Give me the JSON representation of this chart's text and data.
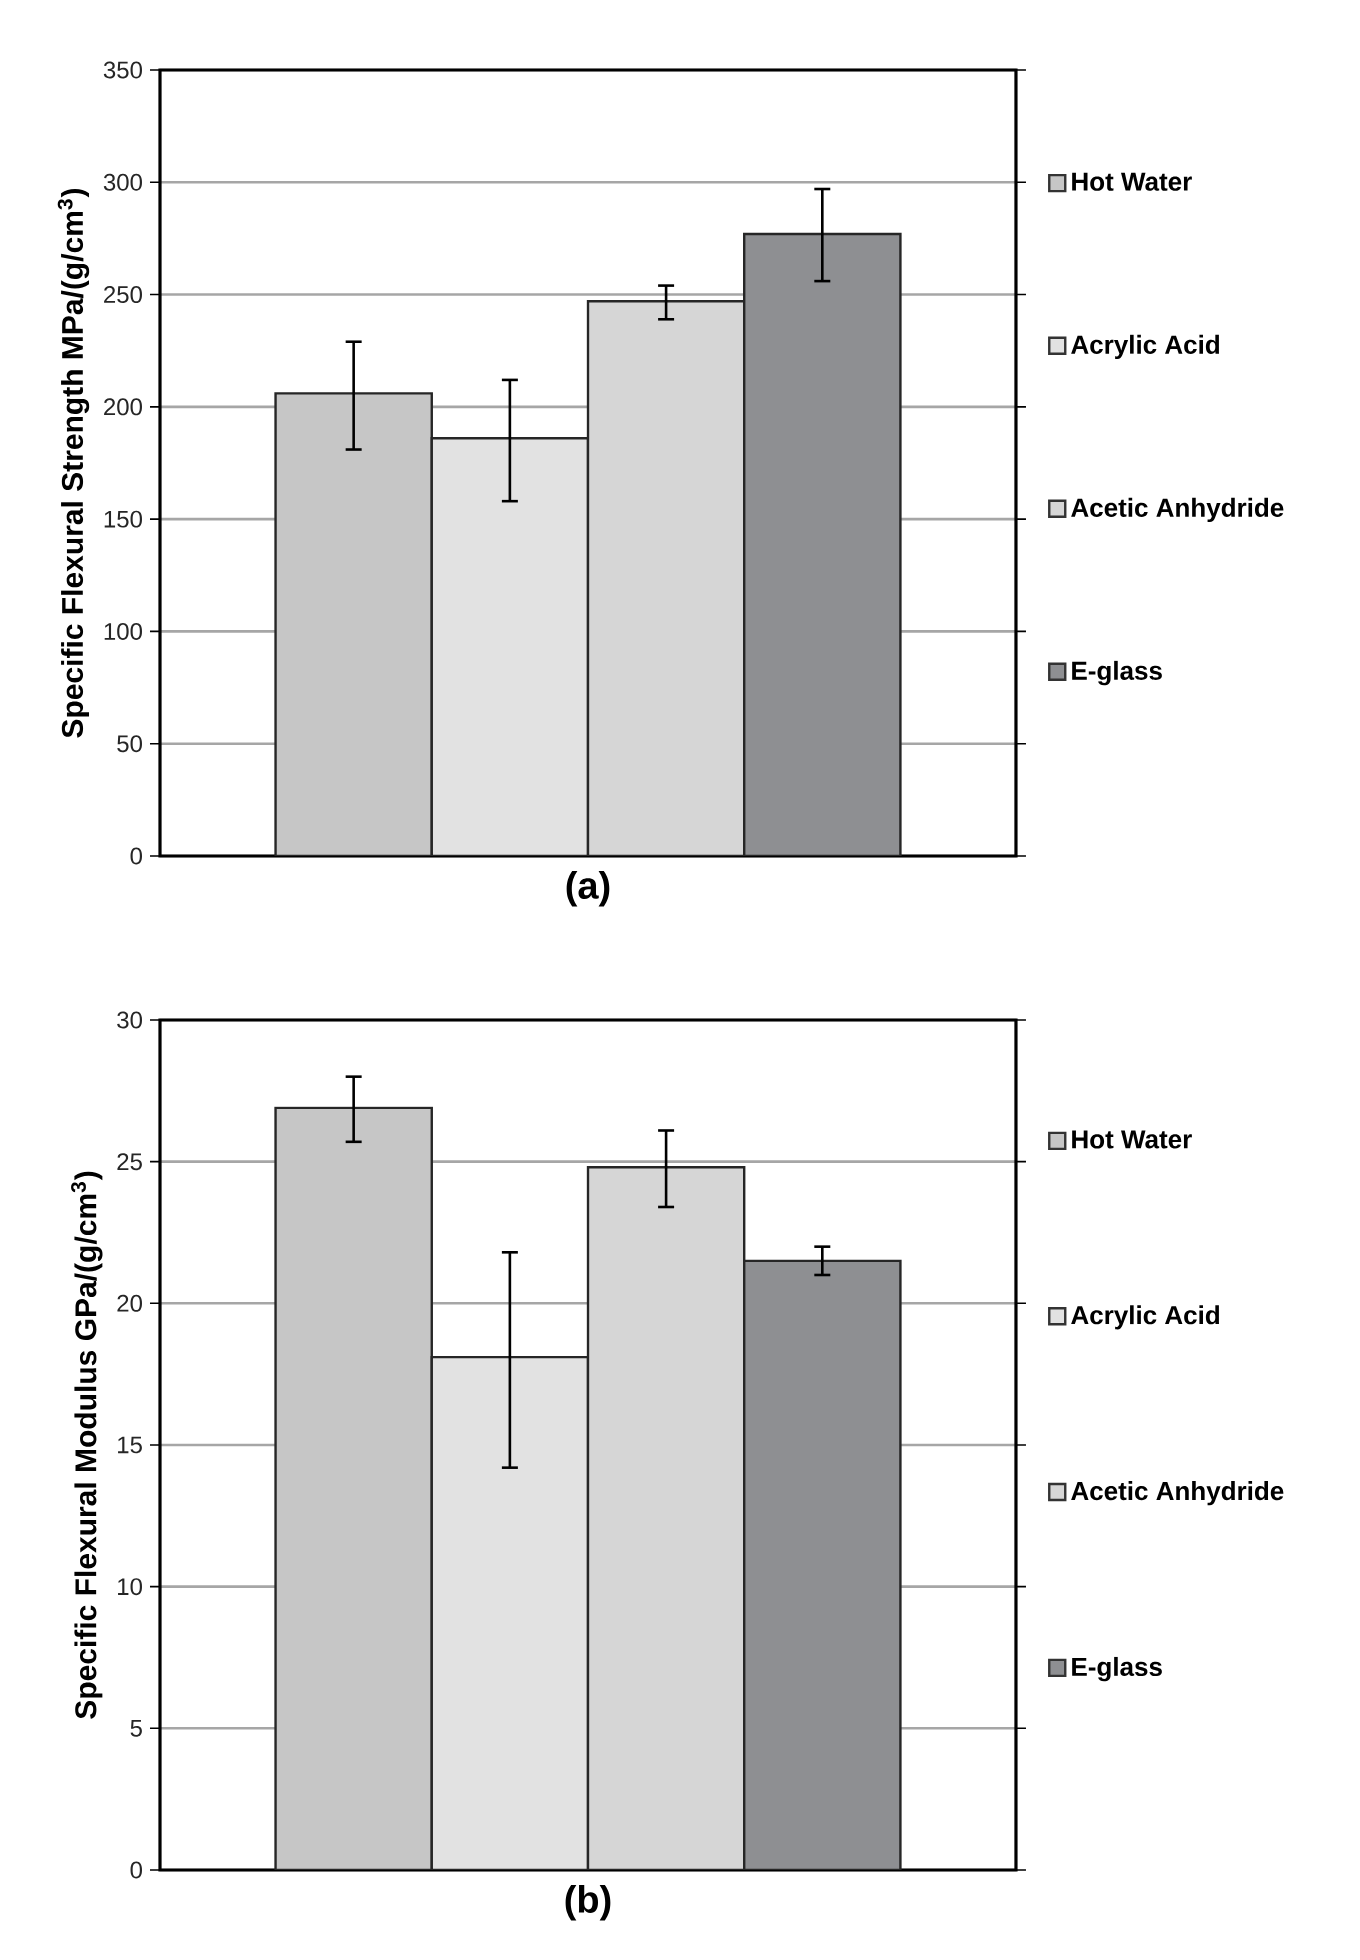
{
  "chart_data": [
    {
      "type": "bar",
      "title": "(a)",
      "ylabel": "Specific Flexural Strength MPa/(g/cm$^{3}$)",
      "categories": [
        null
      ],
      "ylim": [
        0,
        350
      ],
      "yticks": [
        0,
        50,
        100,
        150,
        200,
        250,
        300,
        350
      ],
      "grid": "y",
      "legend": "right",
      "tick_labels": "y",
      "series": [
        {
          "name": "Hot Water",
          "color": "#c6c6c6",
          "values": [
            206
          ],
          "errors": [
            [
              181,
              229
            ]
          ]
        },
        {
          "name": "Acrylic  Acid",
          "color": "#e2e2e2",
          "values": [
            186
          ],
          "errors": [
            [
              158,
              212
            ]
          ]
        },
        {
          "name": "Acetic Anhydride",
          "color": "#d6d6d6",
          "values": [
            247
          ],
          "errors": [
            [
              239,
              254
            ]
          ]
        },
        {
          "name": "E-glass",
          "color": "#8e8f92",
          "values": [
            277
          ],
          "errors": [
            [
              256,
              297
            ]
          ]
        }
      ]
    },
    {
      "type": "bar",
      "title": "(b)",
      "ylabel": "Specific Flexural Modulus GPa/(g/cm$^{3}$)",
      "categories": [
        null
      ],
      "ylim": [
        0,
        30
      ],
      "yticks": [
        0,
        5,
        10,
        15,
        20,
        25,
        30
      ],
      "grid": "y",
      "legend": "right",
      "tick_labels": "y",
      "series": [
        {
          "name": "Hot Water",
          "color": "#c6c6c6",
          "values": [
            26.9
          ],
          "errors": [
            [
              25.7,
              28.0
            ]
          ]
        },
        {
          "name": "Acrylic  Acid",
          "color": "#e2e2e2",
          "values": [
            18.1
          ],
          "errors": [
            [
              14.2,
              21.8
            ]
          ]
        },
        {
          "name": "Acetic Anhydride",
          "color": "#d6d6d6",
          "values": [
            24.8
          ],
          "errors": [
            [
              23.4,
              26.1
            ]
          ]
        },
        {
          "name": "E-glass",
          "color": "#8e8f92",
          "values": [
            21.5
          ],
          "errors": [
            [
              21.0,
              22.0
            ]
          ]
        }
      ]
    }
  ]
}
